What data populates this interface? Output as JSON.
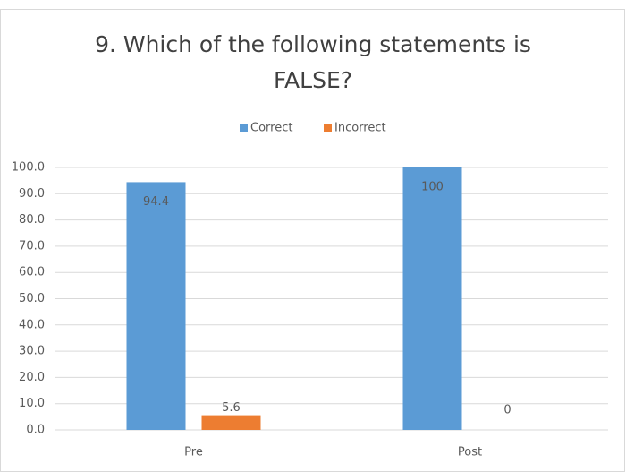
{
  "chart_data": {
    "type": "bar",
    "title": "9. Which of the following statements is FALSE?",
    "categories": [
      "Pre",
      "Post"
    ],
    "series": [
      {
        "name": "Correct",
        "color": "#5b9bd5",
        "values": [
          94.4,
          100
        ]
      },
      {
        "name": "Incorrect",
        "color": "#ed7d31",
        "values": [
          5.6,
          0
        ]
      }
    ],
    "ylim": [
      0,
      100
    ],
    "yticks": [
      {
        "value": 0,
        "label": "0.0"
      },
      {
        "value": 10,
        "label": "10.0"
      },
      {
        "value": 20,
        "label": "20.0"
      },
      {
        "value": 30,
        "label": "30.0"
      },
      {
        "value": 40,
        "label": "40.0"
      },
      {
        "value": 50,
        "label": "50.0"
      },
      {
        "value": 60,
        "label": "60.0"
      },
      {
        "value": 70,
        "label": "70.0"
      },
      {
        "value": 80,
        "label": "80.0"
      },
      {
        "value": 90,
        "label": "90.0"
      },
      {
        "value": 100,
        "label": "100.0"
      }
    ],
    "grid": true,
    "legend": "top"
  }
}
